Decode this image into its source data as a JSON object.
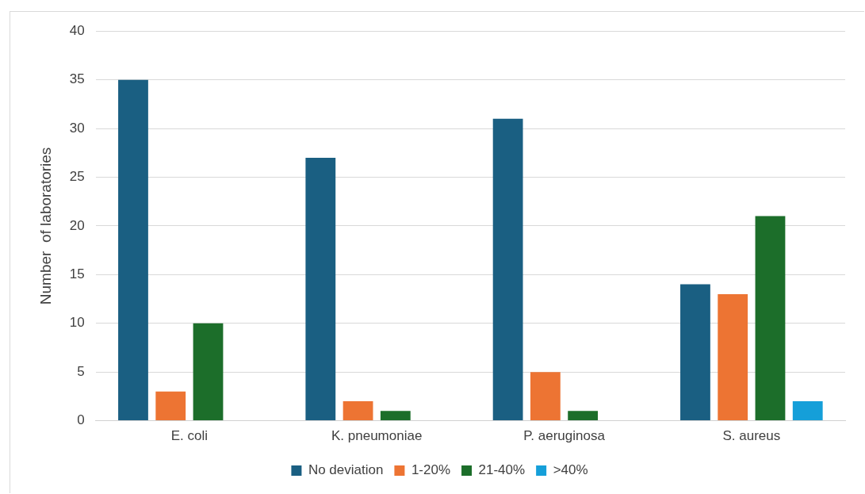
{
  "chart_data": {
    "type": "bar",
    "ylabel": "Number  of laboratories",
    "categories": [
      "E. coli",
      "K. pneumoniae",
      "P. aeruginosa",
      "S. aureus"
    ],
    "series": [
      {
        "name": "No deviation",
        "color": "#1a5f82",
        "values": [
          35,
          27,
          31,
          14
        ]
      },
      {
        "name": "1-20%",
        "color": "#ed7433",
        "values": [
          3,
          2,
          5,
          13
        ]
      },
      {
        "name": "21-40%",
        "color": "#1c6e2a",
        "values": [
          10,
          1,
          1,
          21
        ]
      },
      {
        "name": ">40%",
        "color": "#159fd9",
        "values": [
          0,
          0,
          0,
          2
        ]
      }
    ],
    "ylim": [
      0,
      40
    ],
    "yticks": [
      0,
      5,
      10,
      15,
      20,
      25,
      30,
      35,
      40
    ],
    "grid": "y",
    "legend": "bottom"
  }
}
